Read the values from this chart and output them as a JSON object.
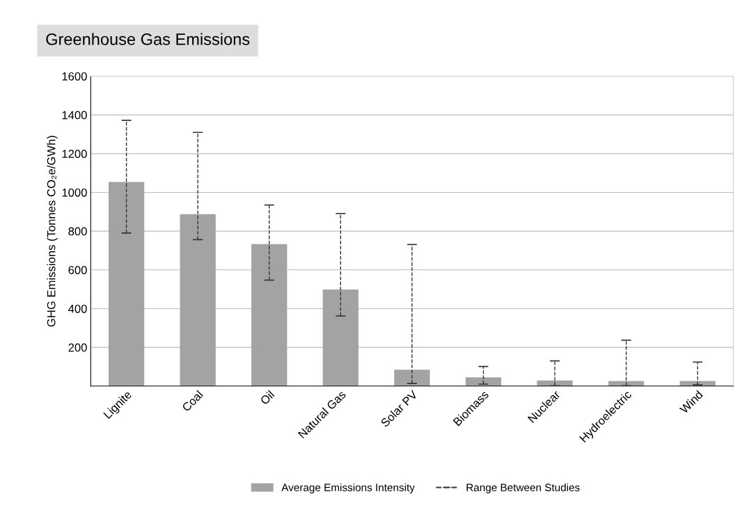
{
  "chart_data": {
    "type": "bar",
    "title": "Greenhouse Gas Emissions",
    "ylabel": "GHG Emissions (Tonnes CO₂e/GWh)",
    "categories": [
      "Lignite",
      "Coal",
      "Oil",
      "Natural Gas",
      "Solar PV",
      "Biomass",
      "Nuclear",
      "Hydroelectric",
      "Wind"
    ],
    "series": [
      {
        "name": "Average Emissions Intensity",
        "color": "#a3a3a3",
        "values": [
          1054,
          888,
          733,
          499,
          85,
          45,
          29,
          26,
          26
        ],
        "errors": [
          [
            790,
            1372
          ],
          [
            756,
            1310
          ],
          [
            547,
            935
          ],
          [
            362,
            891
          ],
          [
            13,
            731
          ],
          [
            10,
            101
          ],
          [
            2,
            130
          ],
          [
            2,
            237
          ],
          [
            6,
            124
          ]
        ]
      }
    ],
    "annotations": [
      "Range Between Studies"
    ],
    "ylim": [
      0,
      1600
    ],
    "yticks": [
      200,
      400,
      600,
      800,
      1000,
      1200,
      1400,
      1600
    ],
    "grid": "y",
    "legend": "bottom",
    "line_style": "dashed"
  }
}
